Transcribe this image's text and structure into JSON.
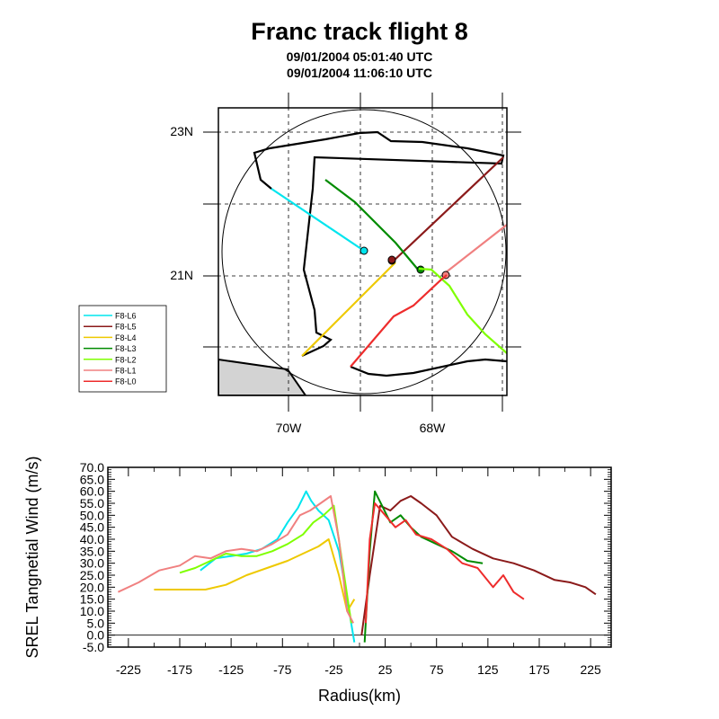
{
  "title": "Franc track flight 8",
  "subtitle_start": "09/01/2004 05:01:40 UTC",
  "subtitle_end": "09/01/2004 11:06:10 UTC",
  "map": {
    "lat_ticks": [
      {
        "label": "23N",
        "value": 23
      },
      {
        "label": "21N",
        "value": 21
      }
    ],
    "lon_ticks": [
      {
        "label": "70W",
        "value": -70
      },
      {
        "label": "68W",
        "value": -68
      }
    ],
    "land_color": "#d3d3d3"
  },
  "legend": [
    {
      "label": "F8-L6",
      "color": "#00e5ee"
    },
    {
      "label": "F8-L5",
      "color": "#8b1a1a"
    },
    {
      "label": "F8-L4",
      "color": "#eec900"
    },
    {
      "label": "F8-L3",
      "color": "#008b00"
    },
    {
      "label": "F8-L2",
      "color": "#7fff00"
    },
    {
      "label": "F8-L1",
      "color": "#f08080"
    },
    {
      "label": "F8-L0",
      "color": "#ee2c2c"
    }
  ],
  "chart_data": {
    "type": "line",
    "xlabel": "Radius(km)",
    "ylabel": "SREL Tangnetial Wind (m/s)",
    "xlim": [
      -245,
      245
    ],
    "ylim": [
      -5,
      70
    ],
    "x_ticks": [
      "-225",
      "-175",
      "-125",
      "-75",
      "-25",
      "25",
      "75",
      "125",
      "175",
      "225"
    ],
    "y_ticks": [
      "70.0",
      "65.0",
      "60.0",
      "55.0",
      "50.0",
      "45.0",
      "40.0",
      "35.0",
      "30.0",
      "25.0",
      "20.0",
      "15.0",
      "10.0",
      "5.0",
      "0.0",
      "-5.0"
    ],
    "series": [
      {
        "name": "F8-L6",
        "color": "#00e5ee",
        "x": [
          -155,
          -140,
          -125,
          -110,
          -95,
          -80,
          -70,
          -60,
          -52,
          -47,
          -40,
          -30,
          -20,
          -12,
          -5
        ],
        "y": [
          27,
          32,
          33,
          34,
          36,
          40,
          47,
          53,
          60,
          56,
          52,
          48,
          35,
          15,
          -3
        ]
      },
      {
        "name": "F8-L5",
        "color": "#8b1a1a",
        "x": [
          2,
          10,
          20,
          30,
          40,
          50,
          60,
          75,
          90,
          110,
          130,
          150,
          170,
          190,
          205,
          220,
          230
        ],
        "y": [
          0,
          25,
          54,
          52,
          56,
          58,
          55,
          50,
          41,
          36,
          32,
          30,
          27,
          23,
          22,
          20,
          17
        ]
      },
      {
        "name": "F8-L4",
        "color": "#eec900",
        "x": [
          -200,
          -185,
          -170,
          -150,
          -130,
          -110,
          -90,
          -70,
          -55,
          -40,
          -30,
          -20,
          -12,
          -5
        ],
        "y": [
          19,
          19,
          19,
          19,
          21,
          25,
          28,
          31,
          34,
          37,
          40,
          25,
          10,
          15
        ]
      },
      {
        "name": "F8-L3",
        "color": "#008b00",
        "x": [
          5,
          10,
          15,
          22,
          30,
          40,
          50,
          60,
          75,
          90,
          105,
          120
        ],
        "y": [
          -3,
          35,
          60,
          54,
          47,
          50,
          45,
          41,
          38,
          35,
          31,
          30
        ]
      },
      {
        "name": "F8-L2",
        "color": "#7fff00",
        "x": [
          -175,
          -160,
          -145,
          -130,
          -115,
          -100,
          -85,
          -70,
          -55,
          -45,
          -35,
          -25,
          -15,
          -8
        ],
        "y": [
          26,
          28,
          31,
          34,
          33,
          33,
          35,
          38,
          42,
          47,
          50,
          54,
          25,
          5
        ]
      },
      {
        "name": "F8-L1",
        "color": "#f08080",
        "x": [
          -235,
          -215,
          -195,
          -175,
          -160,
          -145,
          -130,
          -115,
          -100,
          -85,
          -70,
          -58,
          -48,
          -38,
          -28,
          -20,
          -12,
          -6
        ],
        "y": [
          18,
          22,
          27,
          29,
          33,
          32,
          35,
          36,
          35,
          38,
          42,
          50,
          52,
          55,
          58,
          40,
          10,
          5
        ]
      },
      {
        "name": "F8-L0",
        "color": "#ee2c2c",
        "x": [
          6,
          10,
          15,
          25,
          35,
          45,
          55,
          70,
          85,
          100,
          115,
          130,
          140,
          150,
          160
        ],
        "y": [
          5,
          40,
          55,
          50,
          45,
          48,
          42,
          40,
          36,
          30,
          28,
          20,
          25,
          18,
          15
        ]
      }
    ]
  }
}
